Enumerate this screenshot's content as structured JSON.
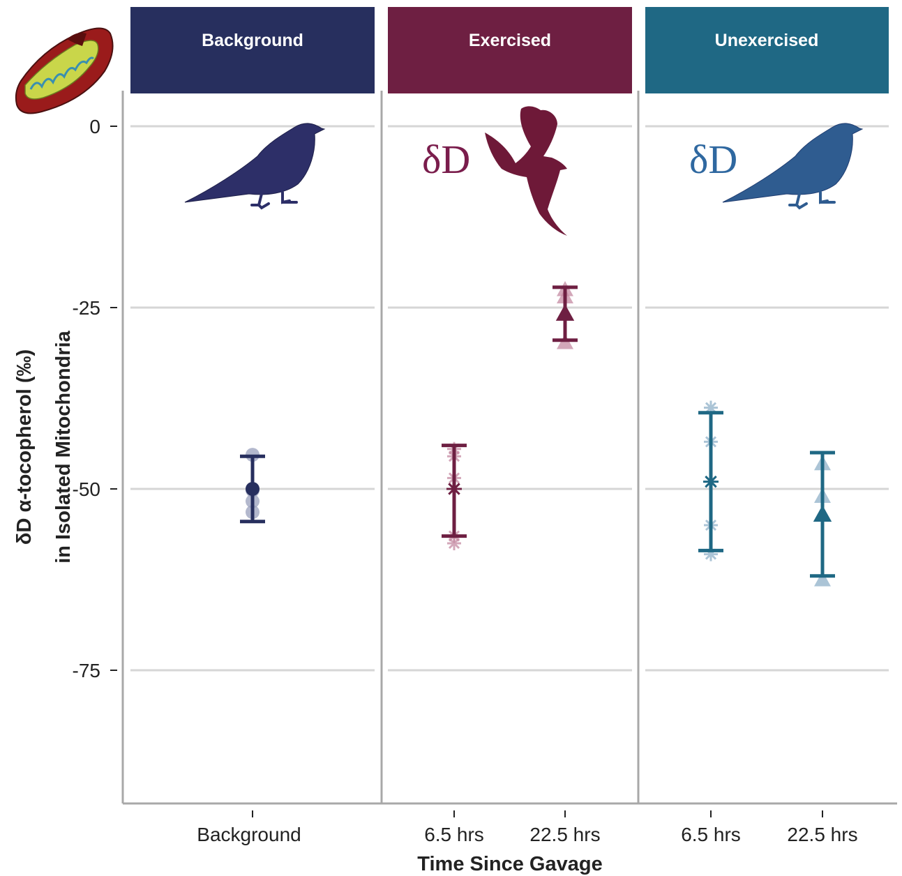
{
  "chart_data": {
    "type": "scatter",
    "facets": [
      {
        "label": "Background",
        "color": "#272f5e"
      },
      {
        "label": "Exercised",
        "color": "#6e1f42"
      },
      {
        "label": "Unexercised",
        "color": "#1f6884"
      }
    ],
    "xlabel": "Time Since Gavage",
    "ylabel_line1": "δD α-tocopherol (‰)",
    "ylabel_line2": "in Isolated Mitochondria",
    "ylim": [
      -93,
      5
    ],
    "yticks": [
      0,
      -25,
      -50,
      -75
    ],
    "grid": true,
    "annotation_symbol": "δD",
    "annotation_colors": {
      "Exercised": "#7a1d4c",
      "Unexercised": "#2f68a0"
    },
    "groups": [
      {
        "facet": "Background",
        "x_label": "Background",
        "marker": "circle",
        "mean": -50,
        "lower": -54.5,
        "upper": -45.5,
        "points": [
          -45.3,
          -51.7,
          -53.2,
          -50.2
        ]
      },
      {
        "facet": "Exercised",
        "x_label": "6.5 hrs",
        "marker": "asterisk",
        "mean": -50,
        "lower": -56.5,
        "upper": -44,
        "points": [
          -44.5,
          -45.5,
          -48.5,
          -57.5,
          -56.5,
          -50
        ]
      },
      {
        "facet": "Exercised",
        "x_label": "22.5 hrs",
        "marker": "triangle",
        "mean": -25.8,
        "lower": -29.5,
        "upper": -22.2,
        "points": [
          -22.5,
          -23.5,
          -29.8,
          -25.8
        ]
      },
      {
        "facet": "Unexercised",
        "x_label": "6.5 hrs",
        "marker": "asterisk",
        "mean": -49,
        "lower": -58.5,
        "upper": -39.5,
        "points": [
          -38.8,
          -43.5,
          -55,
          -59,
          -49
        ]
      },
      {
        "facet": "Unexercised",
        "x_label": "22.5 hrs",
        "marker": "triangle",
        "mean": -53.5,
        "lower": -62,
        "upper": -45,
        "points": [
          -46.5,
          -51,
          -62.5,
          -53.5
        ]
      }
    ]
  }
}
